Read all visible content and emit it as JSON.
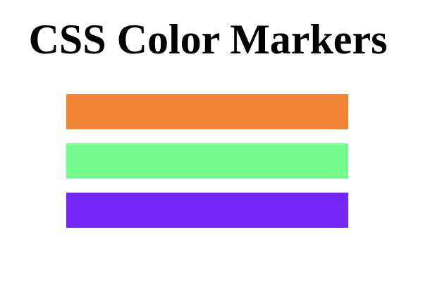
{
  "page": {
    "title": "CSS Color Markers"
  },
  "markers": [
    {
      "name": "orange",
      "color": "#ef8535"
    },
    {
      "name": "green",
      "color": "#77fb8f"
    },
    {
      "name": "purple",
      "color": "#7426f7"
    }
  ]
}
